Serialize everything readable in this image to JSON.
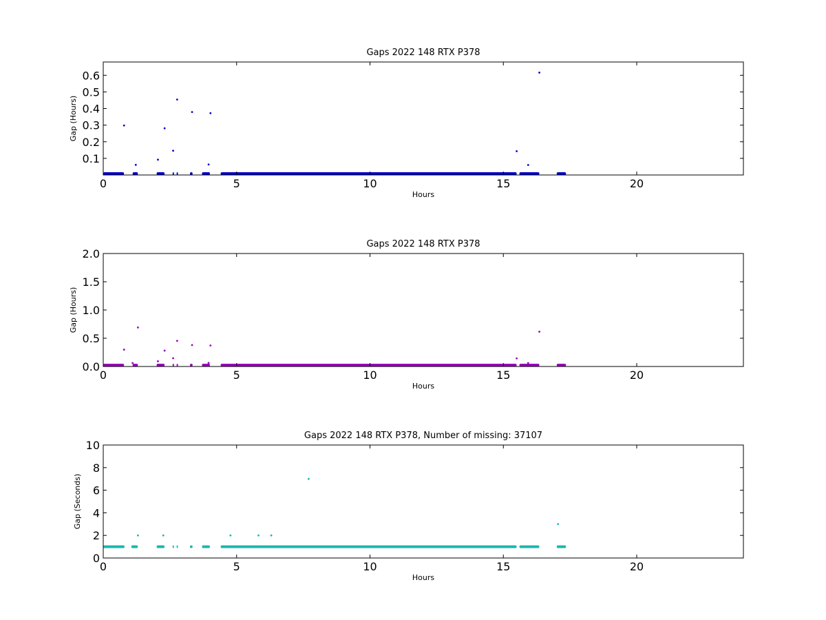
{
  "chart_data": [
    {
      "type": "scatter",
      "title": "Gaps 2022 148 RTX  P378",
      "xlabel": "Hours",
      "ylabel": "Gap (Hours)",
      "xlim": [
        0,
        24
      ],
      "ylim": [
        0,
        0.68
      ],
      "xticks": [
        0,
        5,
        10,
        15,
        20
      ],
      "xtick_labels": [
        "0",
        "5",
        "10",
        "15",
        "20"
      ],
      "yticks": [
        0.1,
        0.2,
        0.3,
        0.4,
        0.5,
        0.6
      ],
      "ytick_labels": [
        "0.1",
        "0.2",
        "0.3",
        "0.4",
        "0.5",
        "0.6"
      ],
      "grid": false,
      "color": "#0000cc",
      "series": [
        {
          "color": "#0000cc",
          "segments": [
            [
              0,
              0.78
            ],
            [
              1.1,
              1.3
            ],
            [
              2.0,
              2.3
            ],
            [
              2.6,
              2.65
            ],
            [
              2.75,
              2.8
            ],
            [
              3.25,
              3.35
            ],
            [
              3.7,
              4.0
            ],
            [
              4.4,
              15.5
            ],
            [
              15.6,
              16.35
            ],
            [
              17.0,
              17.35
            ]
          ],
          "segment_value": 0.0003,
          "x": [
            0.78,
            1.22,
            2.05,
            2.3,
            2.62,
            2.77,
            3.33,
            3.95,
            4.02,
            15.5,
            15.93,
            16.35
          ],
          "y": [
            0.298,
            0.061,
            0.092,
            0.281,
            0.146,
            0.454,
            0.379,
            0.063,
            0.372,
            0.143,
            0.06,
            0.616
          ]
        }
      ]
    },
    {
      "type": "scatter",
      "title": "Gaps 2022 148 RTX  P378",
      "xlabel": "Hours",
      "ylabel": "Gap (Hours)",
      "xlim": [
        0,
        24
      ],
      "ylim": [
        0,
        2.0
      ],
      "xticks": [
        0,
        5,
        10,
        15,
        20
      ],
      "xtick_labels": [
        "0",
        "5",
        "10",
        "15",
        "20"
      ],
      "yticks": [
        0.0,
        0.5,
        1.0,
        1.5,
        2.0
      ],
      "ytick_labels": [
        "0.0",
        "0.5",
        "1.0",
        "1.5",
        "2.0"
      ],
      "grid": false,
      "color": "#9900bb",
      "series": [
        {
          "color": "#9900bb",
          "segments": [
            [
              0,
              0.78
            ],
            [
              1.1,
              1.3
            ],
            [
              2.0,
              2.3
            ],
            [
              2.6,
              2.65
            ],
            [
              2.75,
              2.8
            ],
            [
              3.25,
              3.35
            ],
            [
              3.7,
              4.0
            ],
            [
              4.4,
              15.5
            ],
            [
              15.6,
              16.35
            ],
            [
              17.0,
              17.35
            ]
          ],
          "segment_value": 0.0003,
          "x": [
            0.78,
            1.1,
            1.3,
            2.05,
            2.3,
            2.62,
            2.77,
            3.33,
            3.95,
            4.02,
            15.5,
            15.93,
            16.35
          ],
          "y": [
            0.298,
            0.061,
            0.69,
            0.092,
            0.281,
            0.146,
            0.454,
            0.379,
            0.063,
            0.372,
            0.143,
            0.06,
            0.616
          ]
        }
      ]
    },
    {
      "type": "scatter",
      "title": "Gaps 2022 148 RTX  P378, Number of missing: 37107",
      "xlabel": "Hours",
      "ylabel": "Gap (Seconds)",
      "xlim": [
        0,
        24
      ],
      "ylim": [
        0,
        10
      ],
      "xticks": [
        0,
        5,
        10,
        15,
        20
      ],
      "xtick_labels": [
        "0",
        "5",
        "10",
        "15",
        "20"
      ],
      "yticks": [
        0,
        2,
        4,
        6,
        8,
        10
      ],
      "ytick_labels": [
        "0",
        "2",
        "4",
        "6",
        "8",
        "10"
      ],
      "grid": false,
      "color": "#1ab8b0",
      "series": [
        {
          "color": "#1ab8b0",
          "segments": [
            [
              0,
              0.8
            ],
            [
              1.05,
              1.3
            ],
            [
              2.0,
              2.3
            ],
            [
              2.6,
              2.65
            ],
            [
              2.75,
              2.8
            ],
            [
              3.25,
              3.35
            ],
            [
              3.7,
              4.0
            ],
            [
              4.4,
              15.5
            ],
            [
              15.6,
              16.35
            ],
            [
              17.0,
              17.35
            ]
          ],
          "segment_value": 1,
          "x": [
            1.3,
            2.25,
            4.77,
            5.82,
            6.3,
            7.7,
            17.05
          ],
          "y": [
            2,
            2,
            2,
            2,
            2,
            7,
            3
          ]
        }
      ]
    }
  ]
}
